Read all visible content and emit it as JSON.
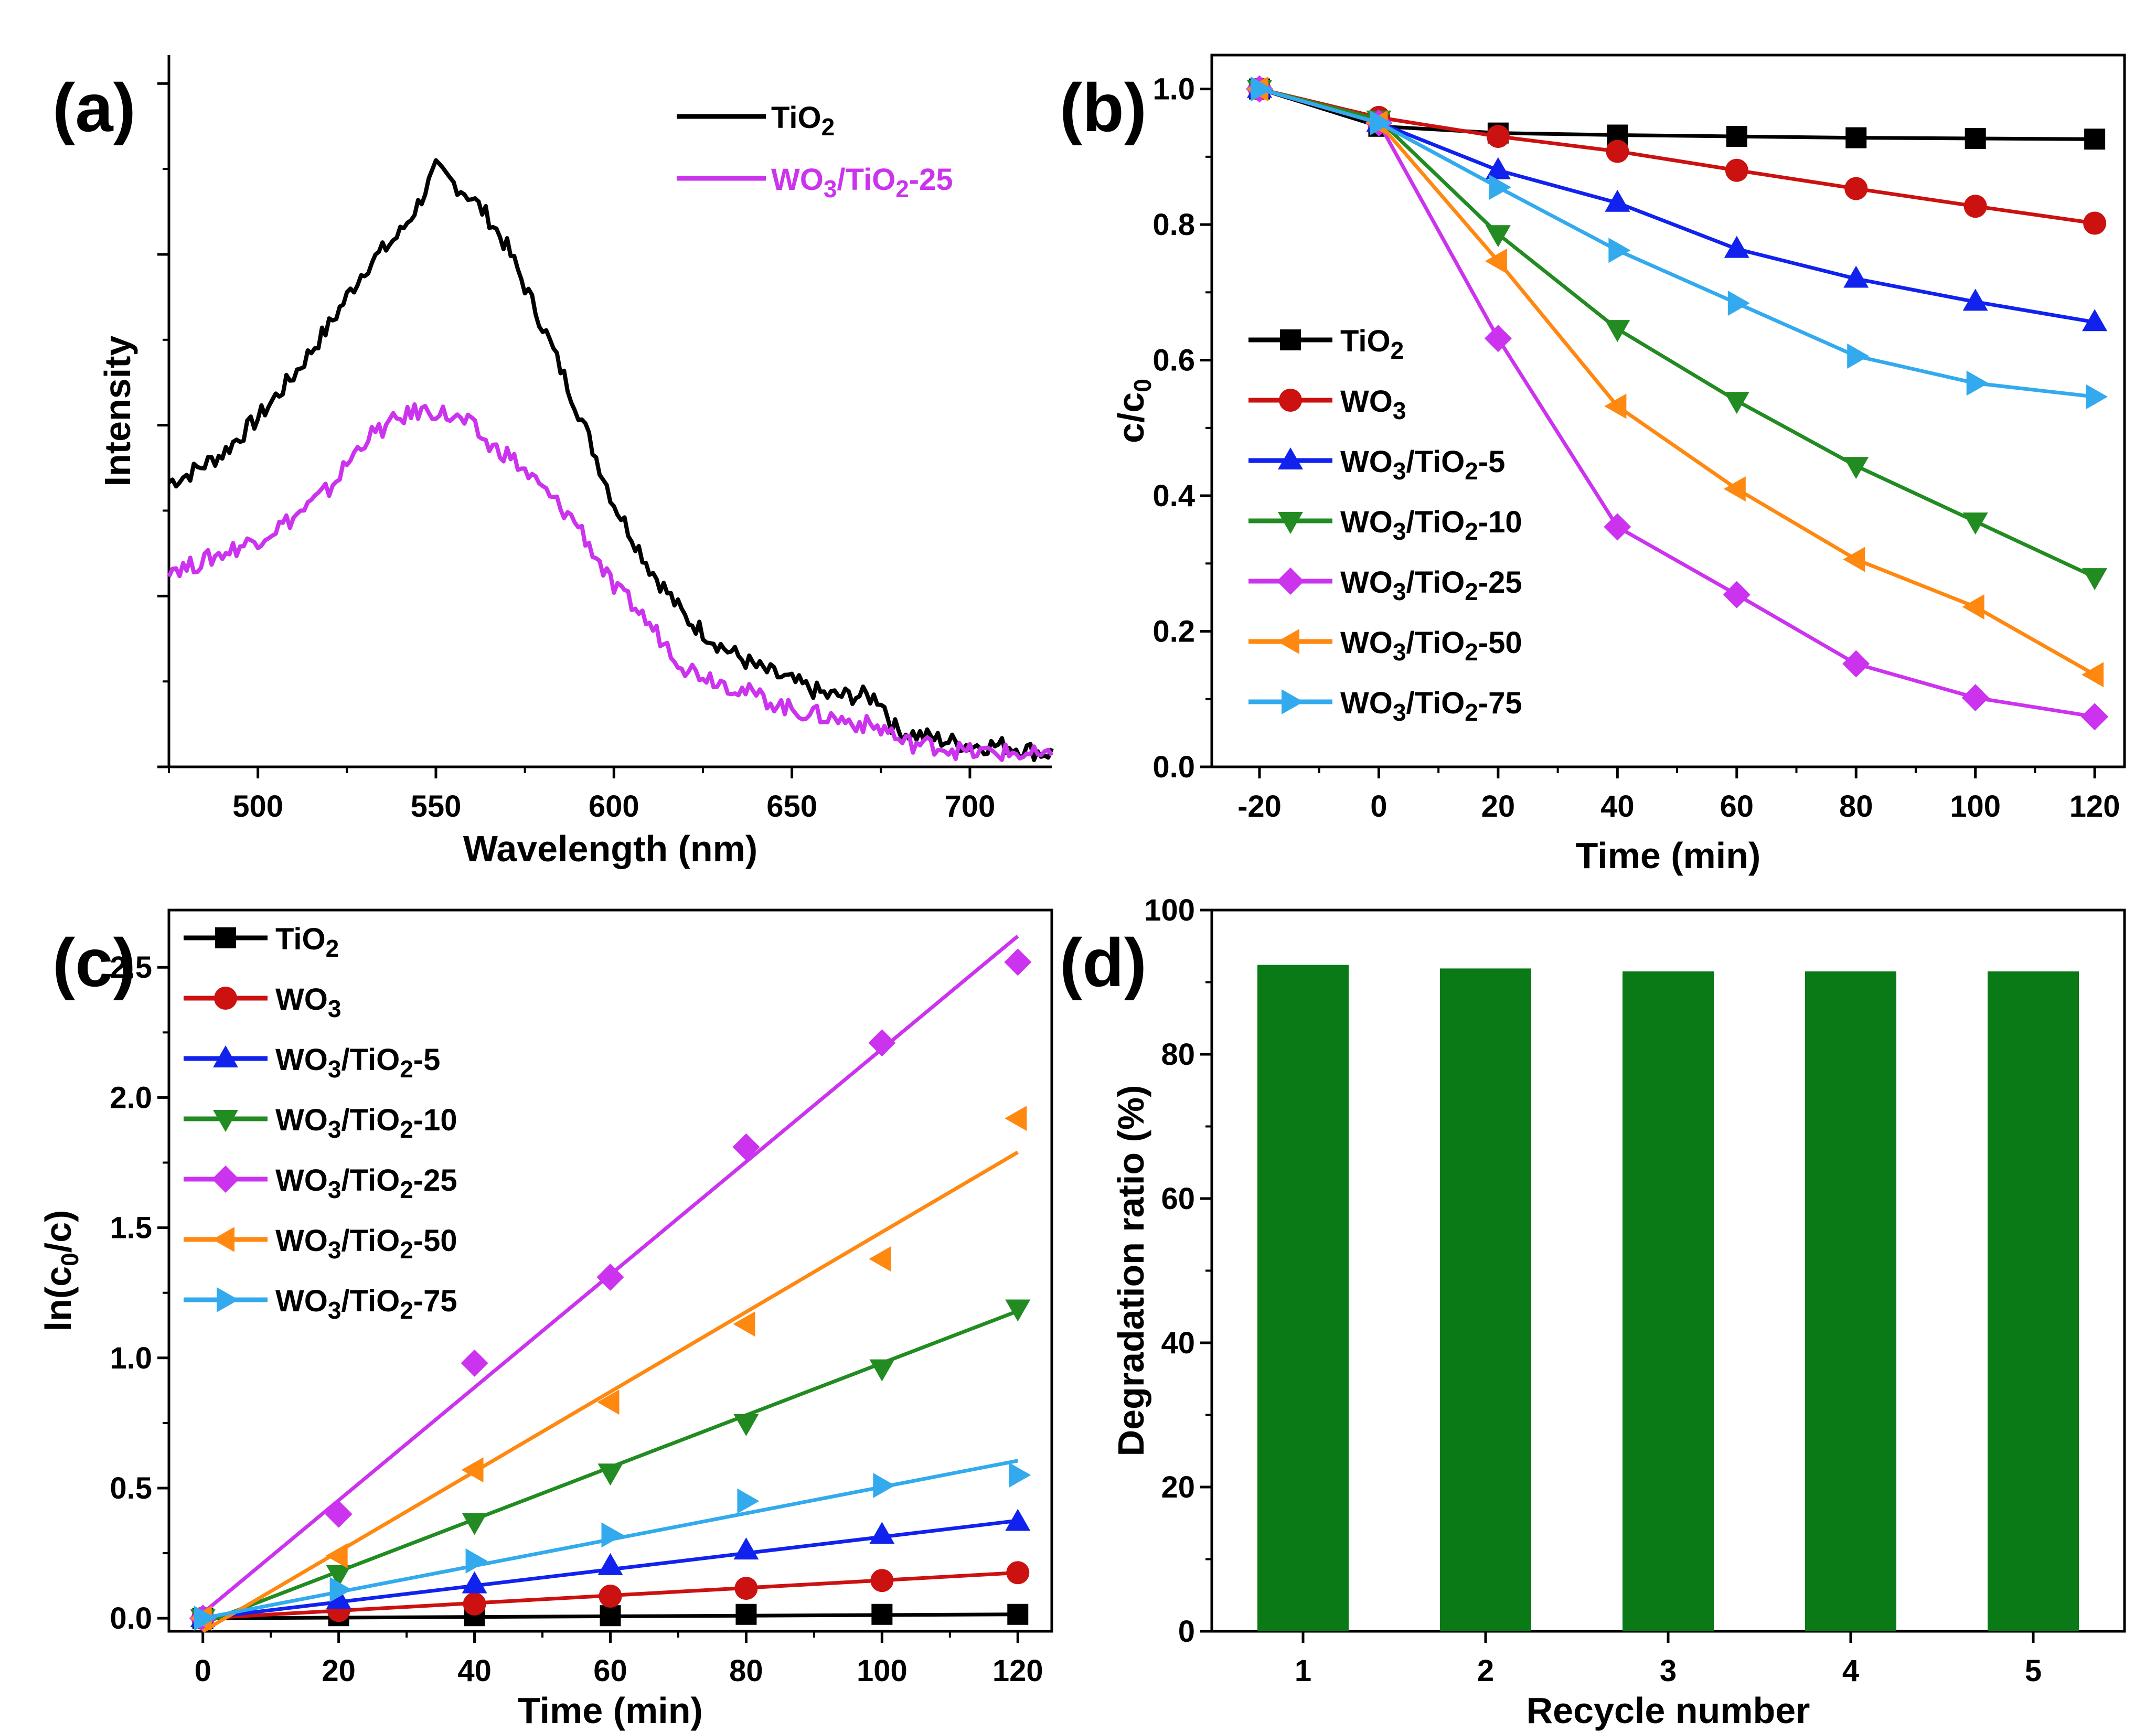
{
  "figure": {
    "panel_count": 4
  },
  "chart_data": [
    {
      "id": "a",
      "type": "line",
      "panel_label": "(a)",
      "xlabel": "Wavelength (nm)",
      "ylabel": "Intensity",
      "xlim": [
        475,
        723
      ],
      "ylim": [
        0,
        100
      ],
      "xticks": [
        500,
        550,
        600,
        650,
        700
      ],
      "ytick_values": [
        0,
        24,
        48,
        72,
        96
      ],
      "y_tick_labels_shown": false,
      "legend_position": "top-right",
      "series": [
        {
          "name": "TiO2",
          "color": "#000000",
          "x": [
            475,
            480,
            490,
            500,
            510,
            520,
            530,
            540,
            545,
            550,
            555,
            560,
            565,
            570,
            580,
            590,
            600,
            610,
            620,
            630,
            640,
            650,
            660,
            670,
            675,
            678,
            680,
            690,
            700,
            710,
            720,
            723
          ],
          "y": [
            40,
            41,
            44,
            49,
            55,
            62,
            70,
            75,
            79,
            84,
            82,
            80,
            77,
            73,
            62,
            50,
            37,
            28,
            21,
            17,
            14,
            12,
            10,
            10,
            9.5,
            6,
            5,
            4,
            3,
            3,
            2,
            2
          ]
        },
        {
          "name": "WO3/TiO2-25",
          "color": "#cc33ee",
          "x": [
            475,
            480,
            490,
            500,
            510,
            520,
            530,
            540,
            545,
            550,
            555,
            560,
            565,
            570,
            580,
            590,
            600,
            605,
            610,
            620,
            630,
            640,
            650,
            660,
            670,
            678,
            680,
            690,
            700,
            710,
            720,
            723
          ],
          "y": [
            28,
            28,
            30,
            32,
            35,
            39,
            46,
            49,
            50,
            50,
            49,
            48,
            45,
            44,
            39,
            34,
            25,
            23,
            20,
            14,
            12,
            10,
            8,
            7,
            6,
            5,
            3.5,
            3,
            2,
            2,
            1.5,
            1
          ]
        }
      ]
    },
    {
      "id": "b",
      "type": "line",
      "panel_label": "(b)",
      "xlabel": "Time (min)",
      "ylabel": "c/c0",
      "xlim": [
        -28,
        125
      ],
      "ylim": [
        0,
        1.05
      ],
      "xticks": [
        -20,
        0,
        20,
        40,
        60,
        80,
        100,
        120
      ],
      "yticks": [
        0.0,
        0.2,
        0.4,
        0.6,
        0.8,
        1.0
      ],
      "ytick_labels": [
        "0.0",
        "0.2",
        "0.4",
        "0.6",
        "0.8",
        "1.0"
      ],
      "legend_position": "left",
      "x": [
        -20,
        0,
        20,
        40,
        60,
        80,
        100,
        120
      ],
      "series": [
        {
          "name": "TiO2",
          "color": "#000000",
          "marker": "square",
          "values": [
            1.0,
            0.945,
            0.935,
            0.932,
            0.93,
            0.928,
            0.927,
            0.926
          ]
        },
        {
          "name": "WO3",
          "color": "#cc1111",
          "marker": "circle",
          "values": [
            1.0,
            0.958,
            0.93,
            0.908,
            0.88,
            0.853,
            0.827,
            0.802
          ]
        },
        {
          "name": "WO3/TiO2-5",
          "color": "#1122ee",
          "marker": "triangle-up",
          "values": [
            1.0,
            0.95,
            0.88,
            0.832,
            0.764,
            0.72,
            0.686,
            0.656
          ]
        },
        {
          "name": "WO3/TiO2-10",
          "color": "#228B22",
          "marker": "triangle-down",
          "values": [
            1.0,
            0.955,
            0.786,
            0.646,
            0.54,
            0.444,
            0.362,
            0.28
          ]
        },
        {
          "name": "WO3/TiO2-25",
          "color": "#cc33ee",
          "marker": "diamond",
          "values": [
            1.0,
            0.95,
            0.632,
            0.354,
            0.254,
            0.152,
            0.102,
            0.074
          ]
        },
        {
          "name": "WO3/TiO2-50",
          "color": "#ff8811",
          "marker": "triangle-left",
          "values": [
            1.0,
            0.95,
            0.746,
            0.532,
            0.41,
            0.306,
            0.236,
            0.136
          ]
        },
        {
          "name": "WO3/TiO2-75",
          "color": "#33aaee",
          "marker": "triangle-right",
          "values": [
            1.0,
            0.95,
            0.855,
            0.762,
            0.684,
            0.606,
            0.566,
            0.546
          ]
        }
      ]
    },
    {
      "id": "c",
      "type": "scatter",
      "panel_label": "(c)",
      "xlabel": "Time (min)",
      "ylabel": "ln(c0/c)",
      "xlim": [
        -5,
        125
      ],
      "ylim": [
        -0.05,
        2.72
      ],
      "xticks": [
        0,
        20,
        40,
        60,
        80,
        100,
        120
      ],
      "yticks": [
        0.0,
        0.5,
        1.0,
        1.5,
        2.0,
        2.5
      ],
      "ytick_labels": [
        "0.0",
        "0.5",
        "1.0",
        "1.5",
        "2.0",
        "2.5"
      ],
      "legend_position": "top-left",
      "x": [
        0,
        20,
        40,
        60,
        80,
        100,
        120
      ],
      "series": [
        {
          "name": "TiO2",
          "color": "#000000",
          "marker": "square",
          "values": [
            0.0,
            0.01,
            0.01,
            0.01,
            0.015,
            0.015,
            0.015
          ],
          "fit": [
            0,
            0.015
          ]
        },
        {
          "name": "WO3",
          "color": "#cc1111",
          "marker": "circle",
          "values": [
            0.0,
            0.03,
            0.055,
            0.085,
            0.115,
            0.145,
            0.175
          ],
          "fit": [
            0,
            0.175
          ]
        },
        {
          "name": "WO3/TiO2-5",
          "color": "#1122ee",
          "marker": "triangle-up",
          "values": [
            0.0,
            0.07,
            0.13,
            0.2,
            0.26,
            0.32,
            0.37
          ],
          "fit": [
            0,
            0.375
          ]
        },
        {
          "name": "WO3/TiO2-10",
          "color": "#228B22",
          "marker": "triangle-down",
          "values": [
            0.0,
            0.17,
            0.37,
            0.56,
            0.75,
            0.96,
            1.19
          ],
          "fit": [
            -0.02,
            1.18
          ]
        },
        {
          "name": "WO3/TiO2-25",
          "color": "#cc33ee",
          "marker": "diamond",
          "values": [
            0.0,
            0.4,
            0.98,
            1.31,
            1.81,
            2.21,
            2.52
          ],
          "fit": [
            0.02,
            2.62
          ]
        },
        {
          "name": "WO3/TiO2-50",
          "color": "#ff8811",
          "marker": "triangle-left",
          "values": [
            0.0,
            0.24,
            0.57,
            0.83,
            1.13,
            1.38,
            1.92
          ],
          "fit": [
            -0.05,
            1.79
          ]
        },
        {
          "name": "WO3/TiO2-75",
          "color": "#33aaee",
          "marker": "triangle-right",
          "values": [
            0.0,
            0.11,
            0.22,
            0.32,
            0.45,
            0.51,
            0.55
          ],
          "fit": [
            0,
            0.605
          ]
        }
      ]
    },
    {
      "id": "d",
      "type": "bar",
      "panel_label": "(d)",
      "xlabel": "Recycle number",
      "ylabel": "Degradation ratio (%)",
      "ylim": [
        0,
        100
      ],
      "yticks": [
        0,
        20,
        40,
        60,
        80,
        100
      ],
      "categories": [
        "1",
        "2",
        "3",
        "4",
        "5"
      ],
      "values": [
        92.4,
        91.9,
        91.5,
        91.5,
        91.5
      ],
      "bar_color": "#0a7a16"
    }
  ]
}
